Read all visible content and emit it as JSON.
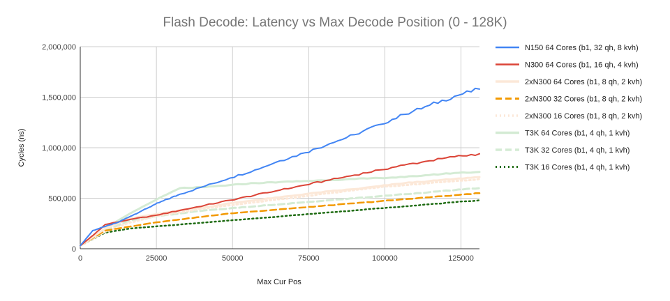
{
  "chart_data": {
    "type": "line",
    "title": "Flash Decode: Latency vs Max Decode Position (0 - 128K)",
    "xlabel": "Max Cur Pos",
    "ylabel": "Cycles (ns)",
    "xlim": [
      0,
      131072
    ],
    "ylim": [
      0,
      2000000
    ],
    "x_ticks": [
      0,
      25000,
      50000,
      75000,
      100000,
      125000
    ],
    "x_tick_labels": [
      "0",
      "25000",
      "50000",
      "75000",
      "100000",
      "125000"
    ],
    "y_ticks": [
      0,
      500000,
      1000000,
      1500000,
      2000000
    ],
    "y_tick_labels": [
      "0",
      "500,000",
      "1,000,000",
      "1,500,000",
      "2,000,000"
    ],
    "grid": true,
    "legend_position": "right",
    "series": [
      {
        "name": "N150 64 Cores (b1, 32 qh, 8 kvh)",
        "color": "#4285f4",
        "dash": "solid",
        "width": 2,
        "x": [
          0,
          4096,
          8192,
          12288,
          16384,
          20480,
          24576,
          28672,
          32768,
          40960,
          49152,
          57344,
          65536,
          73728,
          81920,
          90112,
          98304,
          106496,
          114688,
          122880,
          131072
        ],
        "y": [
          30000,
          180000,
          220000,
          260000,
          320000,
          380000,
          440000,
          490000,
          540000,
          620000,
          700000,
          780000,
          870000,
          950000,
          1040000,
          1130000,
          1230000,
          1330000,
          1420000,
          1510000,
          1580000
        ]
      },
      {
        "name": "N300 64 Cores (b1, 16 qh, 4 kvh)",
        "color": "#db4437",
        "dash": "solid",
        "width": 2,
        "x": [
          0,
          4096,
          8192,
          16384,
          24576,
          32768,
          40960,
          49152,
          57344,
          65536,
          73728,
          81920,
          90112,
          98304,
          106496,
          114688,
          122880,
          131072
        ],
        "y": [
          30000,
          130000,
          240000,
          290000,
          330000,
          380000,
          430000,
          480000,
          530000,
          580000,
          630000,
          680000,
          730000,
          780000,
          830000,
          870000,
          910000,
          940000
        ]
      },
      {
        "name": "2xN300 64 Cores (b1, 8 qh, 2 kvh)",
        "color": "#fce8d8",
        "dash": "solid",
        "width": 3,
        "x": [
          0,
          8192,
          16384,
          24576,
          32768,
          40960,
          49152,
          57344,
          65536,
          73728,
          81920,
          90112,
          98304,
          106496,
          114688,
          122880,
          131072
        ],
        "y": [
          30000,
          200000,
          300000,
          340000,
          380000,
          410000,
          450000,
          480000,
          510000,
          540000,
          570000,
          590000,
          620000,
          650000,
          670000,
          690000,
          710000
        ]
      },
      {
        "name": "2xN300 32 Cores (b1, 8 qh, 2 kvh)",
        "color": "#f29900",
        "dash": "long",
        "width": 2.5,
        "x": [
          0,
          8192,
          16384,
          24576,
          32768,
          40960,
          49152,
          57344,
          65536,
          73728,
          81920,
          90112,
          98304,
          106496,
          114688,
          122880,
          131072
        ],
        "y": [
          30000,
          180000,
          220000,
          260000,
          290000,
          320000,
          350000,
          370000,
          390000,
          410000,
          430000,
          450000,
          470000,
          490000,
          510000,
          530000,
          550000
        ]
      },
      {
        "name": "2xN300 16 Cores (b1, 8 qh, 2 kvh)",
        "color": "#fce8d8",
        "dash": "dotted",
        "width": 3,
        "x": [
          0,
          8192,
          16384,
          24576,
          32768,
          40960,
          49152,
          57344,
          65536,
          73728,
          81920,
          90112,
          98304,
          106496,
          114688,
          122880,
          131072
        ],
        "y": [
          30000,
          170000,
          260000,
          320000,
          360000,
          400000,
          430000,
          460000,
          490000,
          520000,
          550000,
          580000,
          610000,
          630000,
          650000,
          670000,
          690000
        ]
      },
      {
        "name": "T3K 64 Cores (b1, 4 qh, 1 kvh)",
        "color": "#d4ebd4",
        "dash": "solid",
        "width": 3,
        "x": [
          0,
          8192,
          16384,
          24576,
          32768,
          40960,
          49152,
          57344,
          65536,
          73728,
          81920,
          90112,
          98304,
          106496,
          114688,
          122880,
          131072
        ],
        "y": [
          30000,
          200000,
          350000,
          480000,
          600000,
          610000,
          630000,
          650000,
          660000,
          670000,
          680000,
          690000,
          700000,
          710000,
          730000,
          750000,
          760000
        ]
      },
      {
        "name": "T3K 32 Cores (b1, 4 qh, 1 kvh)",
        "color": "#d4ebd4",
        "dash": "long",
        "width": 3,
        "x": [
          0,
          8192,
          16384,
          24576,
          32768,
          40960,
          49152,
          57344,
          65536,
          73728,
          81920,
          90112,
          98304,
          106496,
          114688,
          122880,
          131072
        ],
        "y": [
          30000,
          180000,
          280000,
          320000,
          350000,
          380000,
          400000,
          420000,
          440000,
          460000,
          480000,
          500000,
          520000,
          540000,
          560000,
          580000,
          600000
        ]
      },
      {
        "name": "T3K 16 Cores (b1, 4 qh, 1 kvh)",
        "color": "#1e6b12",
        "dash": "dotted",
        "width": 2.5,
        "x": [
          0,
          8192,
          16384,
          24576,
          32768,
          40960,
          49152,
          57344,
          65536,
          73728,
          81920,
          90112,
          98304,
          106496,
          114688,
          122880,
          131072
        ],
        "y": [
          30000,
          160000,
          200000,
          220000,
          240000,
          260000,
          280000,
          300000,
          320000,
          340000,
          360000,
          380000,
          400000,
          420000,
          440000,
          460000,
          480000
        ]
      }
    ]
  }
}
